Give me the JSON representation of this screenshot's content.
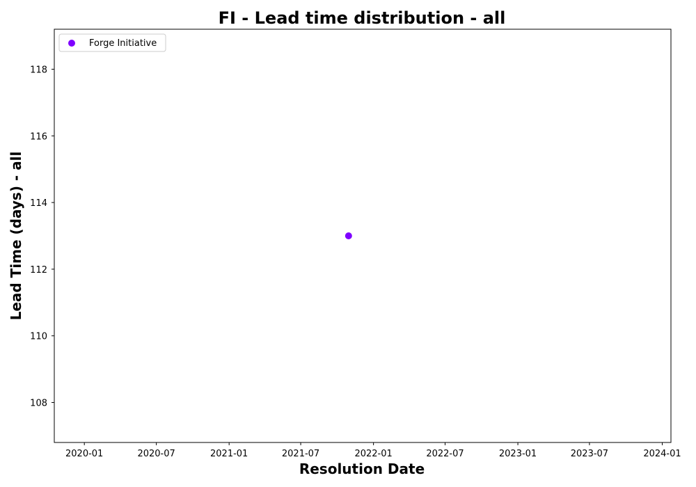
{
  "chart_data": {
    "type": "scatter",
    "title": "FI - Lead time distribution - all",
    "xlabel": "Resolution Date",
    "ylabel": "Lead Time (days) - all",
    "x_axis_type": "date",
    "xlim": [
      "2019-10-17",
      "2024-01-23"
    ],
    "ylim": [
      106.8,
      119.2
    ],
    "x_ticks": [
      {
        "date": "2020-01-01",
        "label": "2020-01"
      },
      {
        "date": "2020-07-01",
        "label": "2020-07"
      },
      {
        "date": "2021-01-01",
        "label": "2021-01"
      },
      {
        "date": "2021-07-01",
        "label": "2021-07"
      },
      {
        "date": "2022-01-01",
        "label": "2022-01"
      },
      {
        "date": "2022-07-01",
        "label": "2022-07"
      },
      {
        "date": "2023-01-01",
        "label": "2023-01"
      },
      {
        "date": "2023-07-01",
        "label": "2023-07"
      },
      {
        "date": "2024-01-01",
        "label": "2024-01"
      }
    ],
    "y_ticks": [
      108,
      110,
      112,
      114,
      116,
      118
    ],
    "grid": false,
    "legend": {
      "placement": "top-left"
    },
    "series": [
      {
        "name": "Forge Initiative",
        "color": "#7f00ff",
        "marker": "circle",
        "points": [
          {
            "x": "2021-10-30",
            "y": 113
          }
        ]
      }
    ]
  }
}
